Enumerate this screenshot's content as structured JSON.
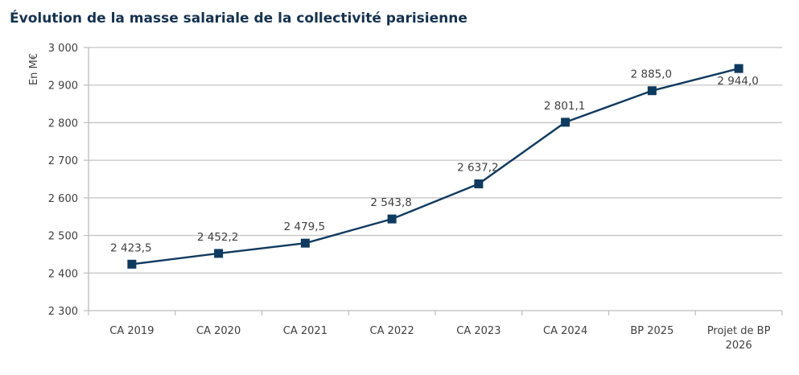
{
  "chart_data": {
    "type": "line",
    "title": "Évolution de la masse salariale de la collectivité parisienne",
    "xlabel": "",
    "ylabel": "En M€",
    "ylim": [
      2300,
      3000
    ],
    "ytick_step": 100,
    "yticks": [
      "2 300",
      "2 400",
      "2 500",
      "2 600",
      "2 700",
      "2 800",
      "2 900",
      "3 000"
    ],
    "ytick_values": [
      2300,
      2400,
      2500,
      2600,
      2700,
      2800,
      2900,
      3000
    ],
    "grid": true,
    "categories": [
      [
        "CA 2019"
      ],
      [
        "CA 2020"
      ],
      [
        "CA 2021"
      ],
      [
        "CA 2022"
      ],
      [
        "CA 2023"
      ],
      [
        "CA 2024"
      ],
      [
        "BP 2025"
      ],
      [
        "Projet de BP",
        "2026"
      ]
    ],
    "series": [
      {
        "name": "Masse salariale",
        "color": "#0f3a5f",
        "marker": "square",
        "values": [
          2423.5,
          2452.2,
          2479.5,
          2543.8,
          2637.2,
          2801.1,
          2885.0,
          2944.0
        ],
        "labels": [
          "2 423,5",
          "2 452,2",
          "2 479,5",
          "2 543,8",
          "2 637,2",
          "2 801,1",
          "2 885,0",
          "2 944,0"
        ],
        "label_positions": [
          "above",
          "above",
          "above",
          "above",
          "above",
          "above",
          "above",
          "below"
        ]
      }
    ],
    "legend": "none"
  }
}
